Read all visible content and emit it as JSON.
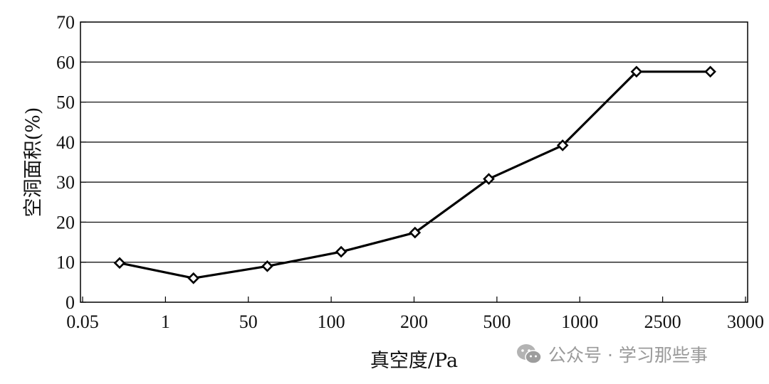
{
  "chart_data": {
    "type": "line",
    "xlabel": "真空度/Pa",
    "ylabel": "空洞面积(%)",
    "x_tick_labels": [
      "0.05",
      "1",
      "50",
      "100",
      "200",
      "500",
      "1000",
      "2500",
      "3000"
    ],
    "y_ticks": [
      0,
      10,
      20,
      30,
      40,
      50,
      60,
      70
    ],
    "ylim": [
      0,
      70
    ],
    "grid": "horizontal",
    "series": [
      {
        "values": [
          9.8,
          6.0,
          9.0,
          12.6,
          17.4,
          30.8,
          39.2,
          57.6,
          57.6
        ]
      }
    ],
    "line_color": "#000000",
    "marker": "diamond"
  },
  "watermark": {
    "icon": "wechat-icon",
    "text": "公众号 · 学习那些事"
  }
}
